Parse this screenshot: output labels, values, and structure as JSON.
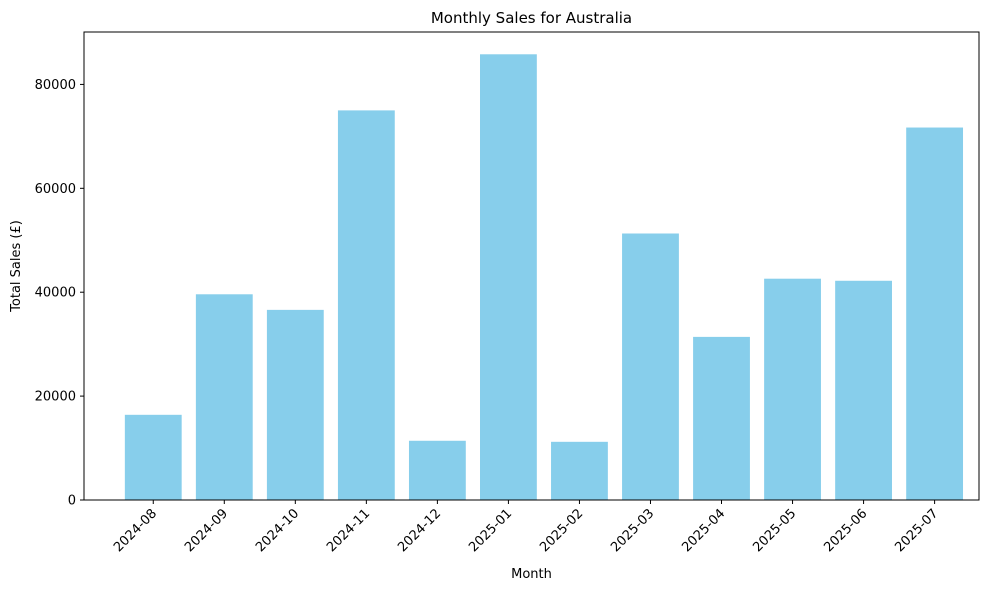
{
  "chart_data": {
    "type": "bar",
    "title": "Monthly Sales for Australia",
    "xlabel": "Month",
    "ylabel": "Total Sales (£)",
    "categories": [
      "2024-08",
      "2024-09",
      "2024-10",
      "2024-11",
      "2024-12",
      "2025-01",
      "2025-02",
      "2025-03",
      "2025-04",
      "2025-05",
      "2025-06",
      "2025-07"
    ],
    "values": [
      16400,
      39600,
      36600,
      75000,
      11400,
      85800,
      11200,
      51300,
      31400,
      42600,
      42200,
      71700
    ],
    "ylim": [
      0,
      90090
    ],
    "yticks": [
      0,
      20000,
      40000,
      60000,
      80000
    ],
    "bar_color": "#87CEEB",
    "grid": false,
    "legend": "none"
  }
}
